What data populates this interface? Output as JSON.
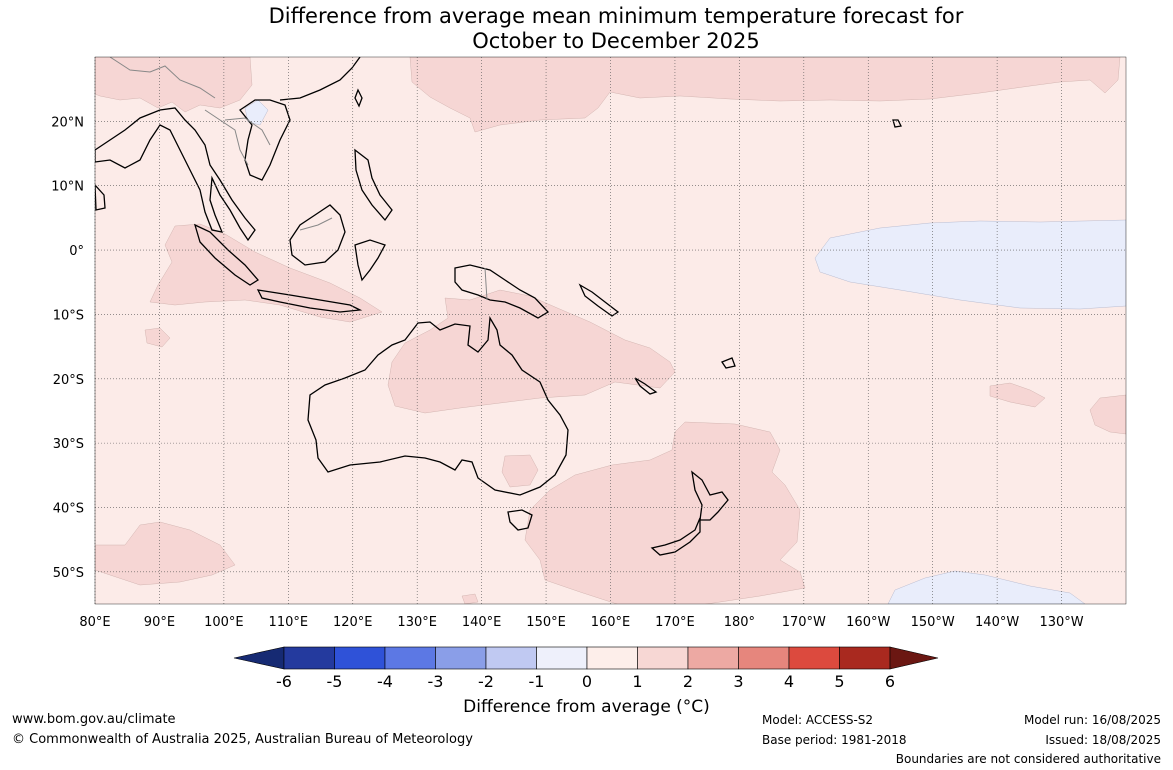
{
  "title": {
    "line1": "Difference from average mean minimum temperature forecast for",
    "line2": "October to December 2025"
  },
  "map": {
    "lon_ticks": [
      "80°E",
      "90°E",
      "100°E",
      "110°E",
      "120°E",
      "130°E",
      "140°E",
      "150°E",
      "160°E",
      "170°E",
      "180°",
      "170°W",
      "160°W",
      "150°W",
      "140°W",
      "130°W"
    ],
    "lat_ticks": [
      "20°N",
      "10°N",
      "0°",
      "10°S",
      "20°S",
      "30°S",
      "40°S",
      "50°S"
    ],
    "extent": {
      "lon_min": 80,
      "lon_max": 240,
      "lat_min": -55,
      "lat_max": 30
    },
    "background_color": "#fcebe8",
    "warm_anomaly_color": "#f6d6d4",
    "cool_anomaly_color": "#e9edfb",
    "coastline_color": "#000000",
    "border_color": "#888888"
  },
  "colorbar": {
    "tick_labels": [
      "-6",
      "-5",
      "-4",
      "-3",
      "-2",
      "-1",
      "0",
      "1",
      "2",
      "3",
      "4",
      "5",
      "6"
    ],
    "colors": [
      "#243a9e",
      "#2f52d8",
      "#5c78e4",
      "#8a9ee8",
      "#c0c9f2",
      "#eef0fb",
      "#fdeeea",
      "#f7d7d4",
      "#eda9a3",
      "#e6867d",
      "#dc4a3e",
      "#a9291f"
    ],
    "extend_low_color": "#162a73",
    "extend_high_color": "#6b1712",
    "label": "Difference from average (°C)"
  },
  "footer": {
    "website": "www.bom.gov.au/climate",
    "copyright": "© Commonwealth of Australia 2025, Australian Bureau of Meteorology",
    "model": "Model: ACCESS-S2",
    "base_period": "Base period: 1981-2018",
    "model_run": "Model run: 16/08/2025",
    "issued": "Issued: 18/08/2025",
    "disclaimer": "Boundaries are not considered authoritative"
  }
}
